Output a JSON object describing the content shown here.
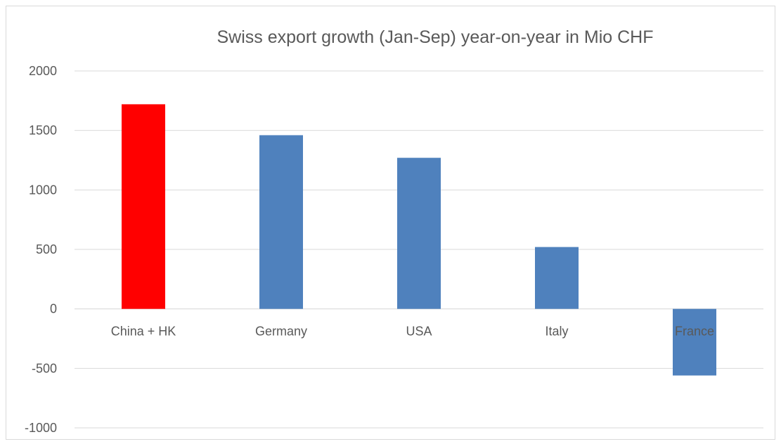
{
  "chart_data": {
    "type": "bar",
    "title": "Swiss export growth (Jan-Sep) year-on-year in Mio CHF",
    "xlabel": "",
    "ylabel": "",
    "categories": [
      "China + HK",
      "Germany",
      "USA",
      "Italy",
      "France"
    ],
    "values": [
      1720,
      1460,
      1270,
      520,
      -560
    ],
    "colors": [
      "#ff0000",
      "#4f81bd",
      "#4f81bd",
      "#4f81bd",
      "#4f81bd"
    ],
    "ylim": [
      -1000,
      2000
    ],
    "yticks": [
      2000,
      1500,
      1000,
      500,
      0,
      -500,
      -1000
    ],
    "grid": true,
    "legend": "none"
  }
}
